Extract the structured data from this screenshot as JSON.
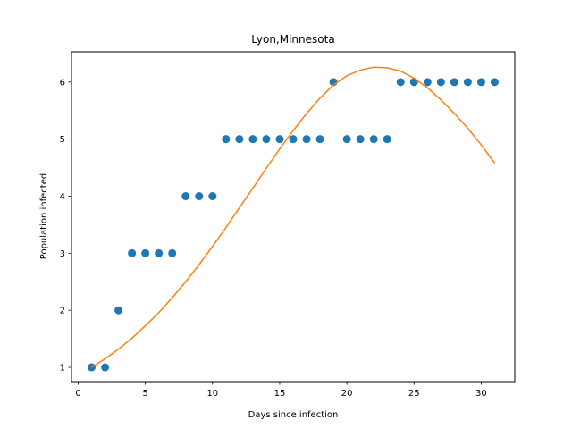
{
  "chart_data": {
    "type": "scatter",
    "title": "Lyon,Minnesota",
    "xlabel": "Days since infection",
    "ylabel": "Population infected",
    "xlim": [
      -0.5,
      32.5
    ],
    "ylim": [
      0.75,
      6.53
    ],
    "xticks": [
      0,
      5,
      10,
      15,
      20,
      25,
      30
    ],
    "yticks": [
      1,
      2,
      3,
      4,
      5,
      6
    ],
    "grid": false,
    "colors": {
      "scatter": "#1f77b4",
      "fit": "#ff7f0e",
      "axes": "#000000"
    },
    "series": [
      {
        "kind": "scatter",
        "x": [
          1,
          2,
          3,
          4,
          5,
          6,
          7,
          8,
          9,
          10,
          11,
          12,
          13,
          14,
          15,
          16,
          17,
          18,
          19,
          20,
          21,
          22,
          23,
          24,
          25,
          26,
          27,
          28,
          29,
          30,
          31
        ],
        "y": [
          1,
          1,
          2,
          3,
          3,
          3,
          3,
          4,
          4,
          4,
          5,
          5,
          5,
          5,
          5,
          5,
          5,
          5,
          6,
          5,
          5,
          5,
          5,
          6,
          6,
          6,
          6,
          6,
          6,
          6,
          6
        ]
      },
      {
        "kind": "line",
        "x": [
          1,
          2,
          3,
          4,
          5,
          6,
          7,
          8,
          9,
          10,
          11,
          12,
          13,
          14,
          15,
          16,
          17,
          18,
          19,
          20,
          21,
          22,
          23,
          24,
          25,
          26,
          27,
          28,
          29,
          30,
          31
        ],
        "y": [
          1.0,
          1.15,
          1.32,
          1.51,
          1.73,
          1.96,
          2.22,
          2.5,
          2.8,
          3.12,
          3.45,
          3.8,
          4.14,
          4.49,
          4.83,
          5.15,
          5.45,
          5.72,
          5.95,
          6.11,
          6.21,
          6.26,
          6.25,
          6.19,
          6.07,
          5.9,
          5.69,
          5.45,
          5.19,
          4.9,
          4.58
        ]
      }
    ]
  }
}
